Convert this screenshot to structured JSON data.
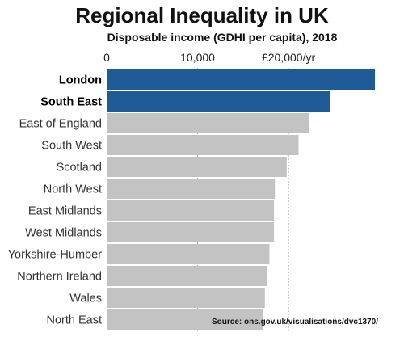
{
  "chart_data": {
    "type": "bar",
    "orientation": "horizontal",
    "title": "Regional Inequality in UK",
    "subtitle": "Disposable income (GDHI per capita), 2018",
    "xlim": [
      0,
      29500
    ],
    "xticks": [
      {
        "value": 0,
        "label": "0"
      },
      {
        "value": 10000,
        "label": "10,000"
      },
      {
        "value": 20000,
        "label": "£20,000/yr"
      }
    ],
    "grid": "vertical-dashed",
    "categories": [
      "London",
      "South East",
      "East of England",
      "South West",
      "Scotland",
      "North West",
      "East Midlands",
      "West Midlands",
      "Yorkshire-Humber",
      "Northern Ireland",
      "Wales",
      "North East"
    ],
    "values": [
      29500,
      24600,
      22300,
      21100,
      19800,
      18500,
      18400,
      18400,
      17900,
      17600,
      17400,
      17200
    ],
    "highlighted": [
      "London",
      "South East"
    ],
    "colors": {
      "highlight": "#1f5b96",
      "default": "#c3c3c3",
      "grid": "#a9a9a9"
    },
    "source": "Source: ons.gov.uk/visualisations/dvc1370/"
  }
}
